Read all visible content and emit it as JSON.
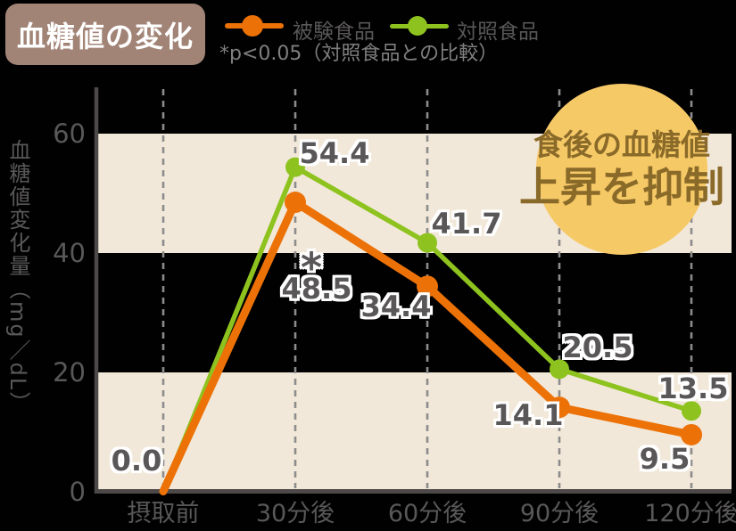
{
  "header": {
    "title": "血糖値の変化",
    "note": "*p<0.05（対照食品との比較）"
  },
  "legend": [
    {
      "label": "被験食品",
      "color": "#ec7208"
    },
    {
      "label": "対照食品",
      "color": "#8ec31f"
    }
  ],
  "annotation": {
    "line1": "食後の血糖値",
    "line2": "上昇を抑制",
    "circle_color": "#f6c967",
    "text_color": "#8a6a29"
  },
  "colors": {
    "background": "#010101",
    "band": "#f2e8d9",
    "axis": "#4c4948",
    "gridline": "#8c8c8c",
    "text": "#595757",
    "badge": "#a28477",
    "label_outline": "#ffffff"
  },
  "chart_data": {
    "type": "line",
    "categories": [
      "摂取前",
      "30分後",
      "60分後",
      "90分後",
      "120分後"
    ],
    "series": [
      {
        "name": "被験食品",
        "color": "#ec7208",
        "values": [
          0.0,
          48.5,
          34.4,
          14.1,
          9.5
        ],
        "point_labels": [
          "0.0",
          "48.5",
          "34.4",
          "14.1",
          "9.5"
        ]
      },
      {
        "name": "対照食品",
        "color": "#8ec31f",
        "values": [
          0.0,
          54.4,
          41.7,
          20.5,
          13.5
        ],
        "point_labels": [
          "",
          "54.4",
          "41.7",
          "20.5",
          "13.5"
        ]
      }
    ],
    "significance_marker": "*",
    "significance_note": "*p<0.05（対照食品との比較）",
    "ylabel": "血糖値変化量（mg／dL）",
    "yticks": [
      0,
      20,
      40,
      60
    ],
    "ylim": [
      0,
      67
    ],
    "band_ranges": [
      [
        0,
        20
      ],
      [
        40,
        60
      ]
    ],
    "grid": "vertical-dashed",
    "legend_position": "top"
  }
}
